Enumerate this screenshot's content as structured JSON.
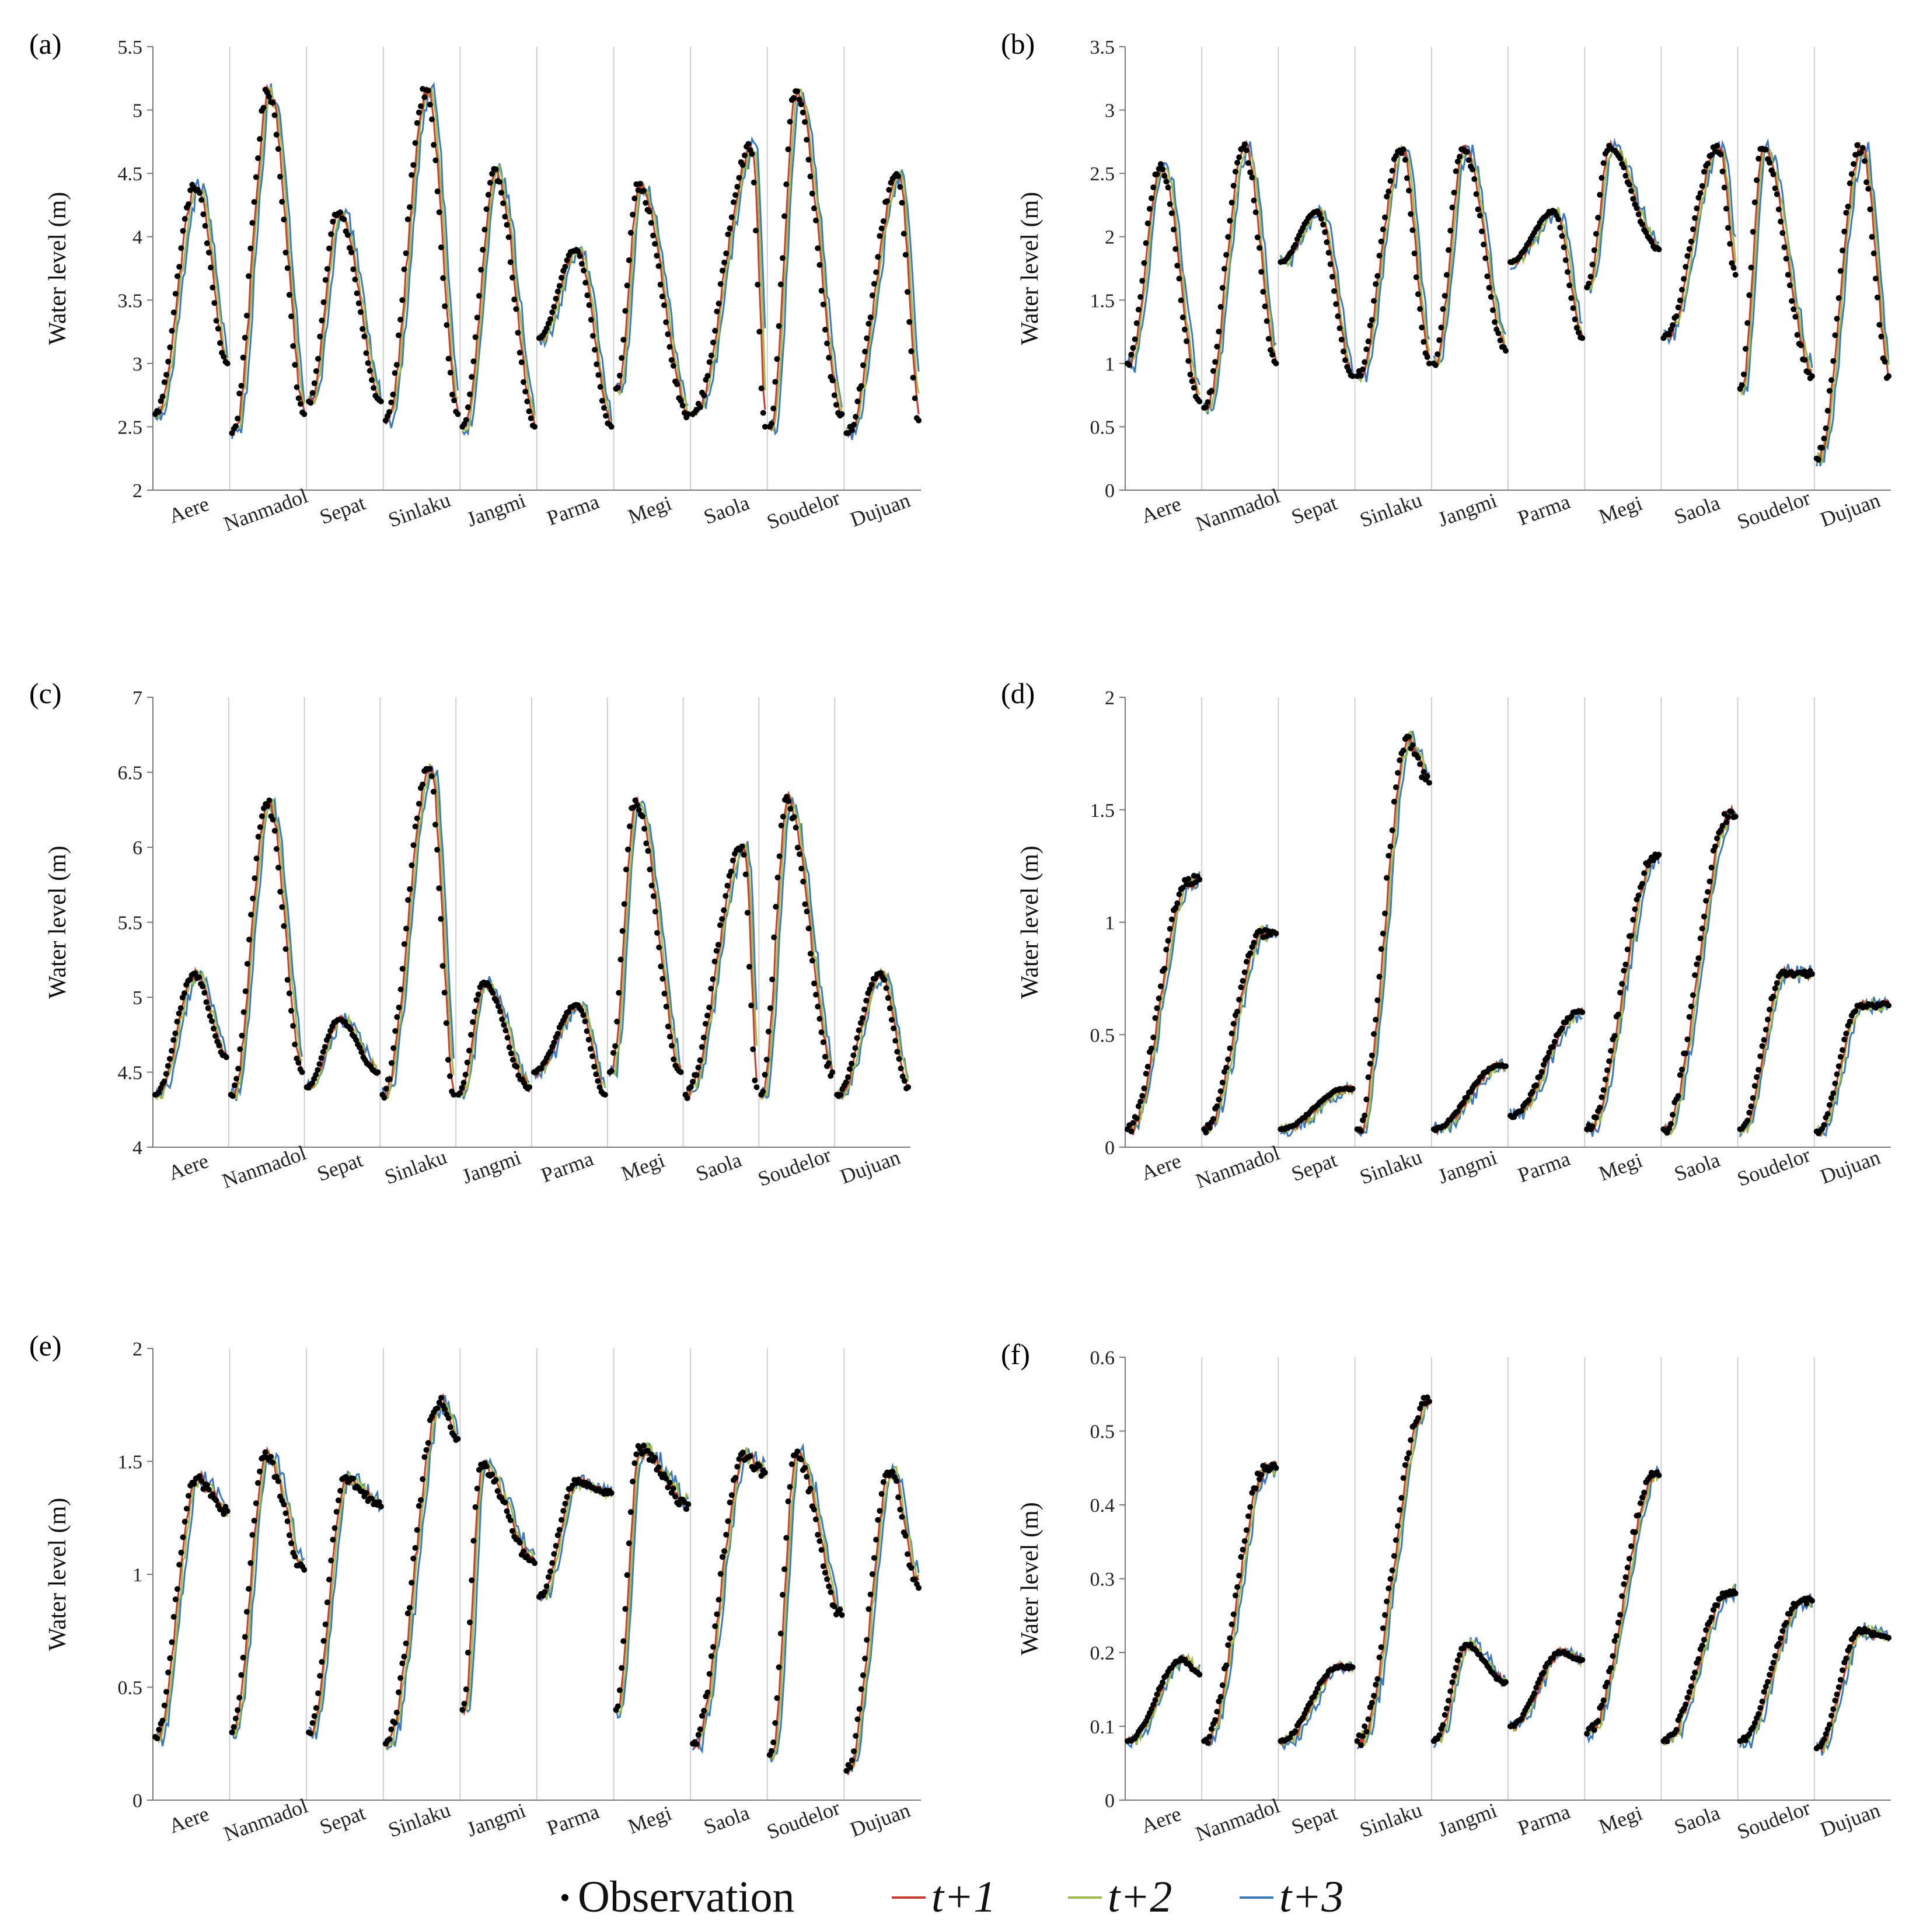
{
  "chart_data": [
    {
      "id": "a",
      "type": "line",
      "panel_label": "(a)",
      "ylabel": "Water level (m)",
      "ylim": [
        2,
        5.5
      ],
      "yticks": [
        2,
        2.5,
        3,
        3.5,
        4,
        4.5,
        5,
        5.5
      ],
      "ytick_labels": [
        "2",
        "2.5",
        "3",
        "3.5",
        "4",
        "4.5",
        "5",
        "5.5"
      ],
      "categories": [
        "Aere",
        "Nanmadol",
        "Sepat",
        "Sinlaku",
        "Jangmi",
        "Parma",
        "Megi",
        "Saola",
        "Soudelor",
        "Dujuan"
      ],
      "events": [
        {
          "start": 2.6,
          "peak": 4.4,
          "end": 3.0,
          "peak_pos": 0.55
        },
        {
          "start": 2.45,
          "peak": 5.15,
          "end": 2.6,
          "peak_pos": 0.5
        },
        {
          "start": 2.7,
          "peak": 4.2,
          "end": 2.7,
          "peak_pos": 0.4
        },
        {
          "start": 2.55,
          "peak": 5.15,
          "end": 2.6,
          "peak_pos": 0.55
        },
        {
          "start": 2.5,
          "peak": 4.5,
          "end": 2.5,
          "peak_pos": 0.45
        },
        {
          "start": 3.2,
          "peak": 3.9,
          "end": 2.5,
          "peak_pos": 0.5
        },
        {
          "start": 2.8,
          "peak": 4.4,
          "end": 2.6,
          "peak_pos": 0.3
        },
        {
          "start": 2.6,
          "peak": 4.7,
          "end": 2.5,
          "peak_pos": 0.8
        },
        {
          "start": 2.5,
          "peak": 5.15,
          "end": 2.6,
          "peak_pos": 0.35
        },
        {
          "start": 2.45,
          "peak": 4.5,
          "end": 2.55,
          "peak_pos": 0.7
        }
      ]
    },
    {
      "id": "b",
      "type": "line",
      "panel_label": "(b)",
      "ylabel": "Water level (m)",
      "ylim": [
        0,
        3.5
      ],
      "yticks": [
        0,
        0.5,
        1,
        1.5,
        2,
        2.5,
        3,
        3.5
      ],
      "ytick_labels": [
        "0",
        "0.5",
        "1",
        "1.5",
        "2",
        "2.5",
        "3",
        "3.5"
      ],
      "categories": [
        "Aere",
        "Nanmadol",
        "Sepat",
        "Sinlaku",
        "Jangmi",
        "Parma",
        "Megi",
        "Saola",
        "Soudelor",
        "Dujuan"
      ],
      "events": [
        {
          "start": 1.0,
          "peak": 2.55,
          "end": 0.7,
          "peak_pos": 0.45
        },
        {
          "start": 0.65,
          "peak": 2.7,
          "end": 1.0,
          "peak_pos": 0.55
        },
        {
          "start": 1.8,
          "peak": 2.2,
          "end": 0.9,
          "peak_pos": 0.5
        },
        {
          "start": 0.9,
          "peak": 2.7,
          "end": 1.0,
          "peak_pos": 0.6
        },
        {
          "start": 1.0,
          "peak": 2.7,
          "end": 1.1,
          "peak_pos": 0.4
        },
        {
          "start": 1.8,
          "peak": 2.2,
          "end": 1.2,
          "peak_pos": 0.6
        },
        {
          "start": 1.6,
          "peak": 2.7,
          "end": 1.9,
          "peak_pos": 0.3
        },
        {
          "start": 1.2,
          "peak": 2.7,
          "end": 1.7,
          "peak_pos": 0.75
        },
        {
          "start": 0.8,
          "peak": 2.7,
          "end": 0.9,
          "peak_pos": 0.3
        },
        {
          "start": 0.25,
          "peak": 2.7,
          "end": 0.9,
          "peak_pos": 0.6
        }
      ]
    },
    {
      "id": "c",
      "type": "line",
      "panel_label": "(c)",
      "ylabel": "Water level (m)",
      "ylim": [
        4,
        7
      ],
      "yticks": [
        4,
        4.5,
        5,
        5.5,
        6,
        6.5,
        7
      ],
      "ytick_labels": [
        "4",
        "4.5",
        "5",
        "5.5",
        "6",
        "6.5",
        "7"
      ],
      "categories": [
        "Aere",
        "Nanmadol",
        "Sepat",
        "Sinlaku",
        "Jangmi",
        "Parma",
        "Megi",
        "Saola",
        "Soudelor",
        "Dujuan"
      ],
      "events": [
        {
          "start": 4.35,
          "peak": 5.15,
          "end": 4.6,
          "peak_pos": 0.55
        },
        {
          "start": 4.35,
          "peak": 6.3,
          "end": 4.5,
          "peak_pos": 0.5
        },
        {
          "start": 4.4,
          "peak": 4.85,
          "end": 4.5,
          "peak_pos": 0.45
        },
        {
          "start": 4.35,
          "peak": 6.55,
          "end": 4.35,
          "peak_pos": 0.65
        },
        {
          "start": 4.35,
          "peak": 5.1,
          "end": 4.4,
          "peak_pos": 0.35
        },
        {
          "start": 4.5,
          "peak": 4.95,
          "end": 4.35,
          "peak_pos": 0.6
        },
        {
          "start": 4.5,
          "peak": 6.3,
          "end": 4.5,
          "peak_pos": 0.35
        },
        {
          "start": 4.35,
          "peak": 6.0,
          "end": 4.4,
          "peak_pos": 0.8
        },
        {
          "start": 4.35,
          "peak": 6.3,
          "end": 4.5,
          "peak_pos": 0.35
        },
        {
          "start": 4.35,
          "peak": 5.15,
          "end": 4.4,
          "peak_pos": 0.6
        }
      ]
    },
    {
      "id": "d",
      "type": "line",
      "panel_label": "(d)",
      "ylabel": "Water level (m)",
      "ylim": [
        0,
        2
      ],
      "yticks": [
        0,
        0.5,
        1,
        1.5,
        2
      ],
      "ytick_labels": [
        "0",
        "0.5",
        "1",
        "1.5",
        "2"
      ],
      "categories": [
        "Aere",
        "Nanmadol",
        "Sepat",
        "Sinlaku",
        "Jangmi",
        "Parma",
        "Megi",
        "Saola",
        "Soudelor",
        "Dujuan"
      ],
      "events": [
        {
          "start": 0.08,
          "peak": 1.19,
          "end": 1.19,
          "peak_pos": 0.85
        },
        {
          "start": 0.08,
          "peak": 0.95,
          "end": 0.95,
          "peak_pos": 0.8
        },
        {
          "start": 0.08,
          "peak": 0.26,
          "end": 0.26,
          "peak_pos": 0.9
        },
        {
          "start": 0.08,
          "peak": 1.8,
          "end": 1.62,
          "peak_pos": 0.7
        },
        {
          "start": 0.08,
          "peak": 0.36,
          "end": 0.36,
          "peak_pos": 0.9
        },
        {
          "start": 0.14,
          "peak": 0.6,
          "end": 0.6,
          "peak_pos": 0.95
        },
        {
          "start": 0.08,
          "peak": 1.3,
          "end": 1.3,
          "peak_pos": 0.95
        },
        {
          "start": 0.08,
          "peak": 1.47,
          "end": 1.47,
          "peak_pos": 0.9
        },
        {
          "start": 0.08,
          "peak": 0.77,
          "end": 0.77,
          "peak_pos": 0.6
        },
        {
          "start": 0.07,
          "peak": 0.63,
          "end": 0.63,
          "peak_pos": 0.6
        }
      ]
    },
    {
      "id": "e",
      "type": "line",
      "panel_label": "(e)",
      "ylabel": "Water level (m)",
      "ylim": [
        0,
        2
      ],
      "yticks": [
        0,
        0.5,
        1,
        1.5,
        2
      ],
      "ytick_labels": [
        "0",
        "0.5",
        "1",
        "1.5",
        "2"
      ],
      "categories": [
        "Aere",
        "Nanmadol",
        "Sepat",
        "Sinlaku",
        "Jangmi",
        "Parma",
        "Megi",
        "Saola",
        "Soudelor",
        "Dujuan"
      ],
      "events": [
        {
          "start": 0.28,
          "peak": 1.42,
          "end": 1.28,
          "peak_pos": 0.55
        },
        {
          "start": 0.3,
          "peak": 1.53,
          "end": 1.02,
          "peak_pos": 0.45
        },
        {
          "start": 0.3,
          "peak": 1.42,
          "end": 1.3,
          "peak_pos": 0.5
        },
        {
          "start": 0.25,
          "peak": 1.77,
          "end": 1.6,
          "peak_pos": 0.75
        },
        {
          "start": 0.4,
          "peak": 1.48,
          "end": 1.05,
          "peak_pos": 0.25
        },
        {
          "start": 0.9,
          "peak": 1.41,
          "end": 1.36,
          "peak_pos": 0.5
        },
        {
          "start": 0.4,
          "peak": 1.56,
          "end": 1.31,
          "peak_pos": 0.3
        },
        {
          "start": 0.25,
          "peak": 1.52,
          "end": 1.45,
          "peak_pos": 0.7
        },
        {
          "start": 0.2,
          "peak": 1.53,
          "end": 0.82,
          "peak_pos": 0.35
        },
        {
          "start": 0.13,
          "peak": 1.46,
          "end": 0.94,
          "peak_pos": 0.6
        }
      ]
    },
    {
      "id": "f",
      "type": "line",
      "panel_label": "(f)",
      "ylabel": "Water level (m)",
      "ylim": [
        0,
        0.6
      ],
      "yticks": [
        0,
        0.1,
        0.2,
        0.3,
        0.4,
        0.5,
        0.6
      ],
      "ytick_labels": [
        "0",
        "0.1",
        "0.2",
        "0.3",
        "0.4",
        "0.5",
        "0.6"
      ],
      "categories": [
        "Aere",
        "Nanmadol",
        "Sepat",
        "Sinlaku",
        "Jangmi",
        "Parma",
        "Megi",
        "Saola",
        "Soudelor",
        "Dujuan"
      ],
      "events": [
        {
          "start": 0.08,
          "peak": 0.19,
          "end": 0.17,
          "peak_pos": 0.75
        },
        {
          "start": 0.08,
          "peak": 0.45,
          "end": 0.45,
          "peak_pos": 0.85
        },
        {
          "start": 0.08,
          "peak": 0.18,
          "end": 0.18,
          "peak_pos": 0.8
        },
        {
          "start": 0.08,
          "peak": 0.54,
          "end": 0.54,
          "peak_pos": 0.95
        },
        {
          "start": 0.08,
          "peak": 0.21,
          "end": 0.16,
          "peak_pos": 0.45
        },
        {
          "start": 0.1,
          "peak": 0.2,
          "end": 0.19,
          "peak_pos": 0.7
        },
        {
          "start": 0.09,
          "peak": 0.44,
          "end": 0.44,
          "peak_pos": 0.95
        },
        {
          "start": 0.08,
          "peak": 0.28,
          "end": 0.28,
          "peak_pos": 0.9
        },
        {
          "start": 0.08,
          "peak": 0.27,
          "end": 0.27,
          "peak_pos": 0.85
        },
        {
          "start": 0.07,
          "peak": 0.23,
          "end": 0.22,
          "peak_pos": 0.6
        }
      ]
    }
  ],
  "legend": {
    "observation": "Observation",
    "items": [
      {
        "label": "t+1",
        "color": "#d23a2e"
      },
      {
        "label": "t+2",
        "color": "#9bbf45"
      },
      {
        "label": "t+3",
        "color": "#3b78c4"
      }
    ]
  },
  "colors": {
    "observation": "#000000",
    "t1": "#d23a2e",
    "t2": "#9bbf45",
    "t3": "#3b78c4",
    "divider": "#cfcfcf",
    "axis": "#7a7a7a"
  }
}
